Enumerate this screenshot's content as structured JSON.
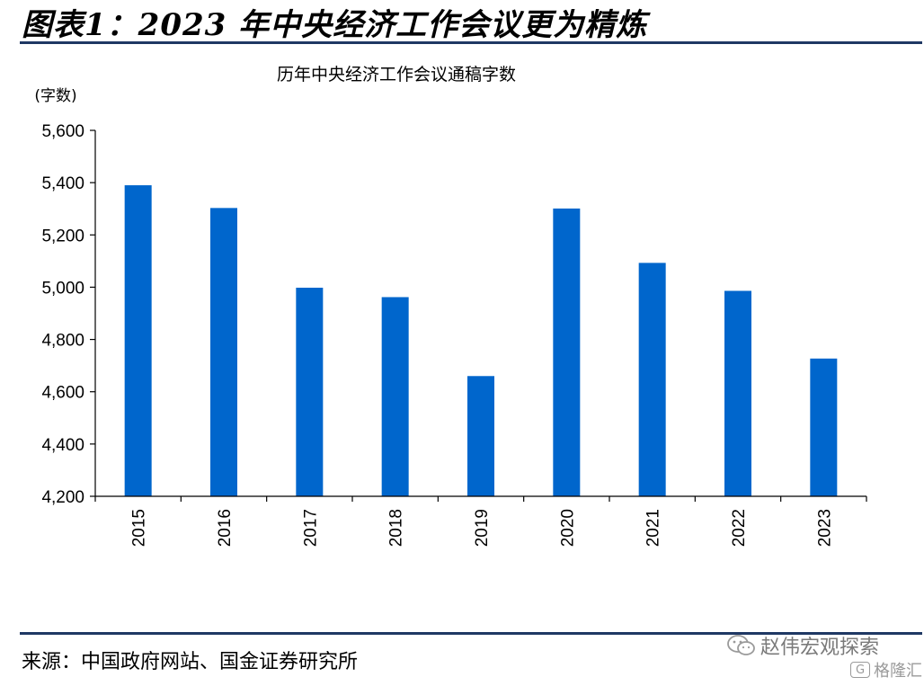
{
  "figure": {
    "heading": "图表1：2023 年中央经济工作会议更为精炼",
    "source": "来源：中国政府网站、国金证券研究所"
  },
  "watermark": {
    "account": "赵伟宏观探索",
    "platform": "格隆汇",
    "logo_glyph": "G",
    "icon_name": "wechat-icon"
  },
  "chart_data": {
    "type": "bar",
    "title": "历年中央经济工作会议通稿字数",
    "ylabel": "(字数)",
    "xlabel": "",
    "categories": [
      "2015",
      "2016",
      "2017",
      "2018",
      "2019",
      "2020",
      "2021",
      "2022",
      "2023"
    ],
    "values": [
      5390,
      5303,
      4998,
      4962,
      4660,
      5301,
      5093,
      4986,
      4727
    ],
    "ylim": [
      4200,
      5600
    ],
    "yticks": [
      4200,
      4400,
      4600,
      4800,
      5000,
      5200,
      5400,
      5600
    ],
    "ytick_labels": [
      "4,200",
      "4,400",
      "4,600",
      "4,800",
      "5,000",
      "5,200",
      "5,400",
      "5,600"
    ],
    "bar_color": "#0066cc",
    "grid": false,
    "legend": "none"
  }
}
